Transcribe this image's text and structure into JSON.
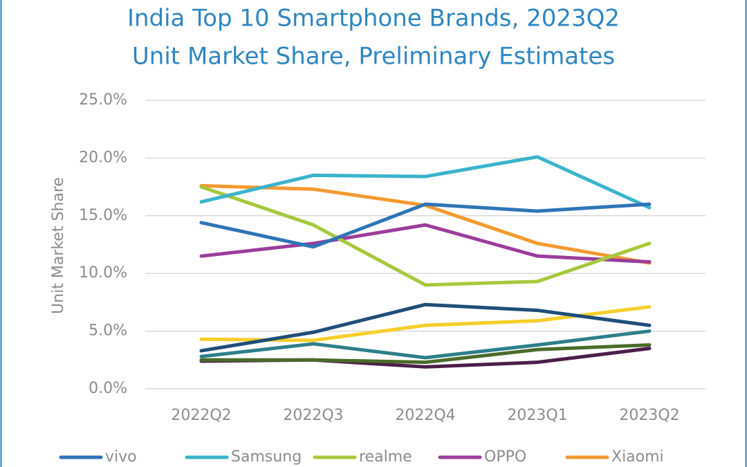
{
  "chart_data": {
    "type": "line",
    "title": "India Top 10 Smartphone Brands, 2023Q2",
    "subtitle": "Unit Market Share, Preliminary Estimates",
    "y_label": "Unit Market Share",
    "categories": [
      "2022Q2",
      "2022Q3",
      "2022Q4",
      "2023Q1",
      "2023Q2"
    ],
    "ylim": [
      0,
      25
    ],
    "yticks": [
      {
        "value": 0,
        "label": "0.0%"
      },
      {
        "value": 5,
        "label": "5.0%"
      },
      {
        "value": 10,
        "label": "10.0%"
      },
      {
        "value": 15,
        "label": "15.0%"
      },
      {
        "value": 20,
        "label": "20.0%"
      },
      {
        "value": 25,
        "label": "25.0%"
      }
    ],
    "grid": true,
    "legend": "bottom",
    "series": [
      {
        "name": "vivo",
        "color": "#2e75b6",
        "values": [
          14.4,
          12.3,
          16.0,
          15.4,
          16.0
        ]
      },
      {
        "name": "Samsung",
        "color": "#3bb3cc",
        "values": [
          16.2,
          18.5,
          18.4,
          20.1,
          15.7
        ]
      },
      {
        "name": "realme",
        "color": "#a6c83c",
        "values": [
          17.5,
          14.2,
          9.0,
          9.3,
          12.6
        ]
      },
      {
        "name": "OPPO",
        "color": "#9b3d9a",
        "values": [
          11.5,
          12.6,
          14.2,
          11.5,
          11.0
        ]
      },
      {
        "name": "Xiaomi",
        "color": "#f49a2f",
        "values": [
          17.6,
          17.3,
          15.9,
          12.6,
          10.9
        ]
      },
      {
        "color": "#1f4e79",
        "values": [
          3.3,
          4.9,
          7.3,
          6.8,
          5.5
        ]
      },
      {
        "color": "#f5cf2a",
        "values": [
          4.3,
          4.2,
          5.5,
          5.9,
          7.1
        ]
      },
      {
        "color": "#2d7f8a",
        "values": [
          2.8,
          3.9,
          2.7,
          3.8,
          5.0
        ]
      },
      {
        "color": "#4a6b2a",
        "values": [
          2.5,
          2.5,
          2.3,
          3.4,
          3.8
        ]
      },
      {
        "color": "#4b1e4a",
        "values": [
          2.4,
          2.5,
          1.9,
          2.3,
          3.5
        ]
      }
    ]
  }
}
